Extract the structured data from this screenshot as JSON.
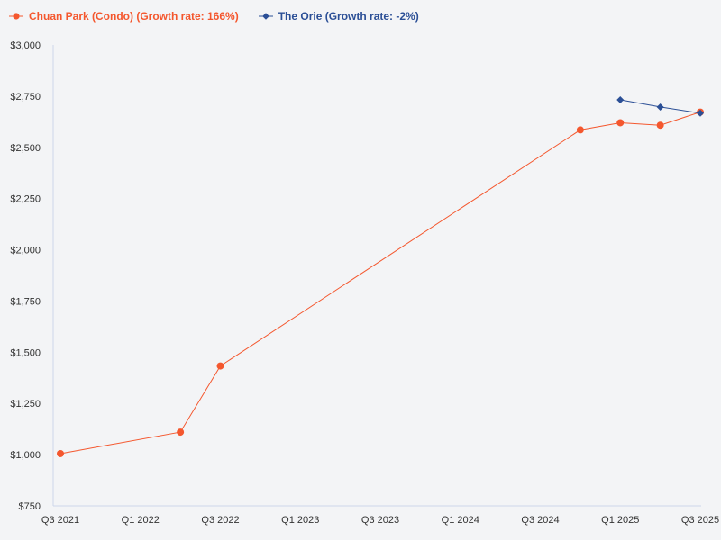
{
  "chart_data": {
    "type": "line",
    "xlabel": "",
    "ylabel": "",
    "x_ticks": [
      "Q3 2021",
      "Q1 2022",
      "Q3 2022",
      "Q1 2023",
      "Q3 2023",
      "Q1 2024",
      "Q3 2024",
      "Q1 2025",
      "Q3 2025"
    ],
    "y_ticks": [
      "$750",
      "$1,000",
      "$1,250",
      "$1,500",
      "$1,750",
      "$2,000",
      "$2,250",
      "$2,500",
      "$2,750",
      "$3,000"
    ],
    "ylim": [
      750,
      3000
    ],
    "grid": false,
    "legend_position": "top-left",
    "series": [
      {
        "name": "Chuan Park (Condo) (Growth rate: 166%)",
        "color": "#f4572e",
        "marker": "circle",
        "points": [
          {
            "x": "Q3 2021",
            "y": 1005
          },
          {
            "x": "Q2 2022",
            "y": 1110
          },
          {
            "x": "Q3 2022",
            "y": 1433
          },
          {
            "x": "Q4 2024",
            "y": 2585
          },
          {
            "x": "Q1 2025",
            "y": 2620
          },
          {
            "x": "Q2 2025",
            "y": 2608
          },
          {
            "x": "Q3 2025",
            "y": 2672
          }
        ]
      },
      {
        "name": "The Orie (Growth rate: -2%)",
        "color": "#2b4f96",
        "marker": "diamond",
        "points": [
          {
            "x": "Q1 2025",
            "y": 2732
          },
          {
            "x": "Q2 2025",
            "y": 2697
          },
          {
            "x": "Q3 2025",
            "y": 2667
          }
        ]
      }
    ]
  }
}
